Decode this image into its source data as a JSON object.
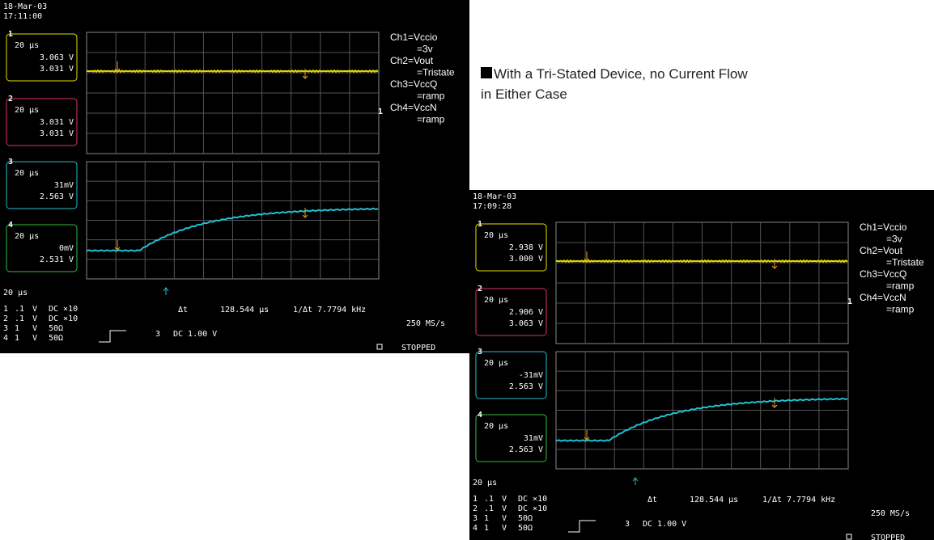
{
  "slide": {
    "note": "With a Tri-Stated Device, no Current Flow in Either Case"
  },
  "scopes": [
    {
      "date": "18-Mar-03",
      "time": "17:11:00",
      "channels": [
        {
          "number": "1",
          "timebase": "20 µs",
          "values": [
            "3.063 V",
            "3.031 V"
          ]
        },
        {
          "number": "2",
          "timebase": "20 µs",
          "values": [
            "3.031 V",
            "3.031 V"
          ]
        },
        {
          "number": "3",
          "timebase": "20 µs",
          "values": [
            "31mV",
            "2.563 V"
          ]
        },
        {
          "number": "4",
          "timebase": "20 µs",
          "values": [
            "0mV",
            "2.531 V"
          ]
        }
      ],
      "labels": [
        "Ch1=Vccio",
        "=3v",
        "Ch2=Vout",
        "=Tristate",
        "Ch3=VccQ",
        "=ramp",
        "Ch4=VccN",
        "=ramp"
      ],
      "timebase": "20 µs",
      "settings": [
        [
          "1",
          ".1",
          "V",
          "DC ×10"
        ],
        [
          "2",
          ".1",
          "V",
          "DC ×10"
        ],
        [
          "3",
          "1",
          "V",
          "50Ω"
        ],
        [
          "4",
          "1",
          "V",
          "50Ω"
        ]
      ],
      "delta_t_label": "Δt",
      "delta_t": "128.544 µs",
      "inv_label": "1/Δt",
      "frequency": "7.7794 kHz",
      "sample_rate": "250 MS/s",
      "trigger_channel": "3",
      "trigger": "DC 1.00 V",
      "status": "STOPPED"
    },
    {
      "date": "18-Mar-03",
      "time": "17:09:28",
      "channels": [
        {
          "number": "1",
          "timebase": "20 µs",
          "values": [
            "2.938 V",
            "3.000 V"
          ]
        },
        {
          "number": "2",
          "timebase": "20 µs",
          "values": [
            "2.906 V",
            "3.063 V"
          ]
        },
        {
          "number": "3",
          "timebase": "20 µs",
          "values": [
            "-31mV",
            "2.563 V"
          ]
        },
        {
          "number": "4",
          "timebase": "20 µs",
          "values": [
            "31mV",
            "2.563 V"
          ]
        }
      ],
      "labels": [
        "Ch1=Vccio",
        "=3v",
        "Ch2=Vout",
        "=Tristate",
        "Ch3=VccQ",
        "=ramp",
        "Ch4=VccN",
        "=ramp"
      ],
      "timebase": "20 µs",
      "settings": [
        [
          "1",
          ".1",
          "V",
          "DC ×10"
        ],
        [
          "2",
          ".1",
          "V",
          "DC ×10"
        ],
        [
          "3",
          "1",
          "V",
          "50Ω"
        ],
        [
          "4",
          "1",
          "V",
          "50Ω"
        ]
      ],
      "delta_t_label": "Δt",
      "delta_t": "128.544 µs",
      "inv_label": "1/Δt",
      "frequency": "7.7794 kHz",
      "sample_rate": "250 MS/s",
      "trigger_channel": "3",
      "trigger": "DC 1.00 V",
      "status": "STOPPED"
    }
  ]
}
